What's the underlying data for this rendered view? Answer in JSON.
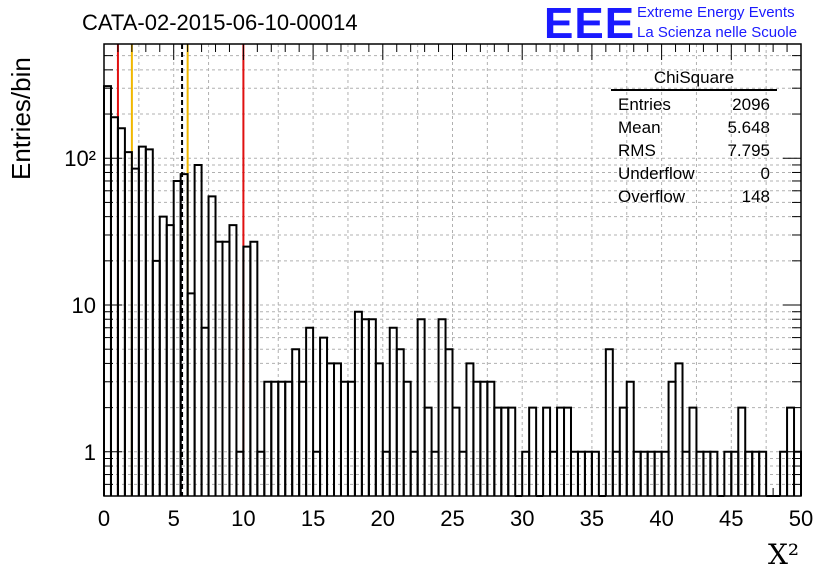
{
  "title": "CATA-02-2015-06-10-00014",
  "logo": {
    "text": "EEE",
    "line1": "Extreme Energy Events",
    "line2": "La Scienza nelle Scuole",
    "color": "#1a1aff"
  },
  "stats_box": {
    "title": "ChiSquare",
    "rows": [
      {
        "label": "Entries",
        "value": "2096"
      },
      {
        "label": "Mean",
        "value": "5.648"
      },
      {
        "label": "RMS",
        "value": "7.795"
      },
      {
        "label": "Underflow",
        "value": "0"
      },
      {
        "label": "Overflow",
        "value": "148"
      }
    ]
  },
  "chart_data": {
    "type": "histogram",
    "xlabel": "X²",
    "ylabel": "Entries/bin",
    "xlim": [
      0,
      50
    ],
    "ylim": [
      0.5,
      600
    ],
    "yscale": "log",
    "grid": true,
    "bin_width": 0.5,
    "x_ticks": [
      "0",
      "5",
      "10",
      "15",
      "20",
      "25",
      "30",
      "35",
      "40",
      "45",
      "50"
    ],
    "y_tick_labels": [
      {
        "value": 1,
        "label": "1"
      },
      {
        "value": 10,
        "label": "10"
      },
      {
        "value": 100,
        "label": "10²"
      }
    ],
    "counts": [
      310,
      190,
      160,
      110,
      85,
      120,
      115,
      20,
      40,
      35,
      70,
      78,
      12,
      90,
      7,
      55,
      27,
      27,
      35,
      1,
      25,
      27,
      1,
      3,
      3,
      3,
      3,
      5,
      3,
      7,
      1,
      6,
      4,
      4,
      3,
      3,
      9,
      8,
      8,
      4,
      1,
      7,
      5,
      3,
      1,
      8,
      2,
      1,
      8,
      5,
      2,
      1,
      4,
      3,
      3,
      3,
      2,
      2,
      2,
      0.5,
      1,
      2,
      0.5,
      2,
      1,
      2,
      2,
      1,
      1,
      1,
      1,
      0.5,
      5,
      1,
      2,
      3,
      1,
      1,
      1,
      1,
      1,
      3,
      4,
      1,
      2,
      1,
      1,
      1,
      0.5,
      1,
      1,
      2,
      1,
      1,
      1,
      0.5,
      0.5,
      1,
      2,
      1
    ],
    "vertical_lines": [
      {
        "x": 1,
        "color": "#e01010",
        "style": "solid"
      },
      {
        "x": 2,
        "color": "#f0b800",
        "style": "solid"
      },
      {
        "x": 5.6,
        "color": "#000000",
        "style": "dashed"
      },
      {
        "x": 6,
        "color": "#f0b800",
        "style": "solid"
      },
      {
        "x": 10,
        "color": "#e01010",
        "style": "solid"
      }
    ]
  }
}
